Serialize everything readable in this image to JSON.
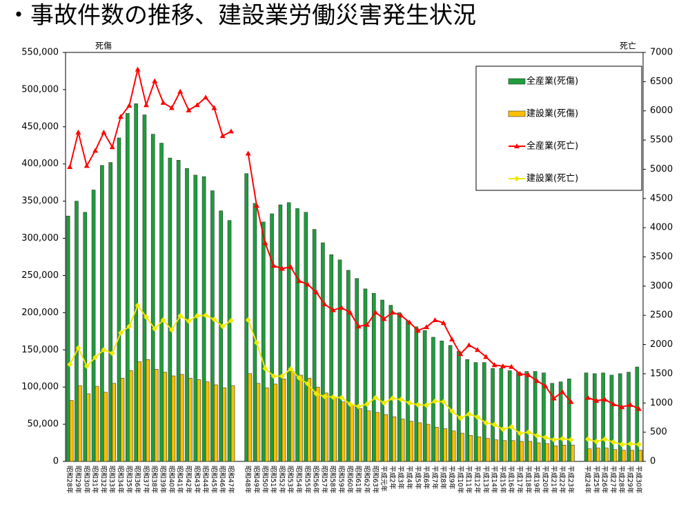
{
  "chart_data": {
    "type": "bar",
    "title": "・事故件数の推移、建設業労働災害発生状況",
    "ylabel": "死傷",
    "y2label": "死亡",
    "categories": [
      "昭和28年",
      "昭和29年",
      "昭和30年",
      "昭和31年",
      "昭和32年",
      "昭和33年",
      "昭和34年",
      "昭和35年",
      "昭和36年",
      "昭和37年",
      "昭和38年",
      "昭和39年",
      "昭和40年",
      "昭和41年",
      "昭和42年",
      "昭和43年",
      "昭和44年",
      "昭和45年",
      "昭和46年",
      "昭和47年",
      null,
      "昭和48年",
      "昭和49年",
      "昭和50年",
      "昭和51年",
      "昭和52年",
      "昭和53年",
      "昭和54年",
      "昭和55年",
      "昭和56年",
      "昭和57年",
      "昭和58年",
      "昭和59年",
      "昭和60年",
      "昭和61年",
      "昭和62年",
      "昭和63年",
      "平成元年",
      "平成2年",
      "平成3年",
      "平成4年",
      "平成5年",
      "平成6年",
      "平成7年",
      "平成8年",
      "平成9年",
      "平成10年",
      "平成11年",
      "平成12年",
      "平成13年",
      "平成14年",
      "平成15年",
      "平成16年",
      "平成17年",
      "平成18年",
      "平成19年",
      "平成20年",
      "平成21年",
      "平成22年",
      "平成23年",
      null,
      "平成24年",
      "平成25年",
      "平成26年",
      "平成27年",
      "平成28年",
      "平成29年",
      "平成30年"
    ],
    "series": [
      {
        "name": "全産業(死傷)",
        "type": "bar",
        "color": "#1e9e3c",
        "values": [
          330000,
          350000,
          335000,
          365000,
          398000,
          402000,
          435000,
          468000,
          481000,
          466000,
          440000,
          428000,
          408000,
          405000,
          394000,
          385000,
          383000,
          364000,
          337000,
          324000,
          null,
          387000,
          347000,
          322000,
          333000,
          345000,
          348000,
          340000,
          335000,
          312000,
          294000,
          278000,
          271000,
          257000,
          246000,
          232000,
          226000,
          217000,
          210000,
          200000,
          189000,
          181000,
          176000,
          167000,
          162000,
          156000,
          148000,
          137000,
          133000,
          133000,
          125000,
          125000,
          122000,
          120000,
          121000,
          121000,
          119000,
          105000,
          107000,
          111000,
          null,
          119000,
          118000,
          119000,
          116000,
          118000,
          120000,
          127000
        ]
      },
      {
        "name": "建設業(死傷)",
        "type": "bar",
        "color": "#ffc000",
        "values": [
          82000,
          102000,
          91000,
          101000,
          93000,
          105000,
          112000,
          122000,
          134000,
          137000,
          124000,
          120000,
          115000,
          117000,
          112000,
          110000,
          107000,
          103000,
          99000,
          102000,
          null,
          118000,
          105000,
          99000,
          104000,
          111000,
          121000,
          116000,
          112000,
          100000,
          92000,
          86000,
          80000,
          76000,
          71000,
          68000,
          66000,
          63000,
          60000,
          57000,
          54000,
          52000,
          50000,
          46000,
          44000,
          41000,
          38000,
          35000,
          33000,
          31000,
          29000,
          28000,
          28000,
          27000,
          27000,
          25000,
          24000,
          21000,
          22000,
          22000,
          null,
          17000,
          18000,
          18000,
          16000,
          15000,
          15000,
          15000
        ]
      },
      {
        "name": "全産業(死亡)",
        "type": "line",
        "axis": "y2",
        "marker": "triangle",
        "color": "#ff0000",
        "values": [
          5040,
          5630,
          5060,
          5320,
          5630,
          5380,
          5900,
          6090,
          6710,
          6100,
          6510,
          6140,
          6050,
          6330,
          6010,
          6100,
          6230,
          6050,
          5570,
          5650,
          null,
          5270,
          4380,
          3740,
          3350,
          3300,
          3330,
          3090,
          3030,
          2900,
          2690,
          2590,
          2630,
          2550,
          2310,
          2340,
          2550,
          2440,
          2550,
          2500,
          2380,
          2240,
          2300,
          2420,
          2370,
          2090,
          1840,
          1990,
          1910,
          1790,
          1650,
          1630,
          1620,
          1500,
          1480,
          1380,
          1290,
          1080,
          1190,
          1020,
          null,
          1090,
          1040,
          1060,
          980,
          930,
          970,
          900
        ]
      },
      {
        "name": "建設業(死亡)",
        "type": "line",
        "axis": "y2",
        "marker": "diamond",
        "color": "#f0e800",
        "values": [
          1660,
          1940,
          1630,
          1780,
          1910,
          1850,
          2200,
          2310,
          2670,
          2470,
          2270,
          2420,
          2250,
          2490,
          2400,
          2490,
          2500,
          2430,
          2310,
          2410,
          null,
          2420,
          2030,
          1590,
          1460,
          1460,
          1580,
          1430,
          1330,
          1160,
          1110,
          1100,
          1090,
          980,
          940,
          980,
          1090,
          1000,
          1080,
          1060,
          1000,
          970,
          960,
          1030,
          1020,
          860,
          740,
          810,
          760,
          660,
          630,
          550,
          590,
          480,
          500,
          440,
          410,
          370,
          390,
          370,
          null,
          380,
          340,
          380,
          330,
          290,
          300,
          290
        ]
      }
    ],
    "ylim": [
      0,
      550000
    ],
    "yticks": [
      0,
      {
        "value": 50000,
        "label": "50,000"
      },
      {
        "value": 100000,
        "label": "100,000"
      },
      {
        "value": 150000,
        "label": "150,000"
      },
      {
        "value": 200000,
        "label": "200,000"
      },
      {
        "value": 250000,
        "label": "250,000"
      },
      {
        "value": 300000,
        "label": "300,000"
      },
      {
        "value": 350000,
        "label": "350,000"
      },
      {
        "value": 400000,
        "label": "400,000"
      },
      {
        "value": 450000,
        "label": "450,000"
      },
      {
        "value": 500000,
        "label": "500,000"
      },
      {
        "value": 550000,
        "label": "550,000"
      }
    ],
    "y2lim": [
      0,
      7000
    ],
    "y2ticks": [
      0,
      500,
      1000,
      1500,
      2000,
      2500,
      3000,
      3500,
      4000,
      4500,
      5000,
      5500,
      6000,
      6500,
      7000
    ],
    "legend": "top-right"
  }
}
